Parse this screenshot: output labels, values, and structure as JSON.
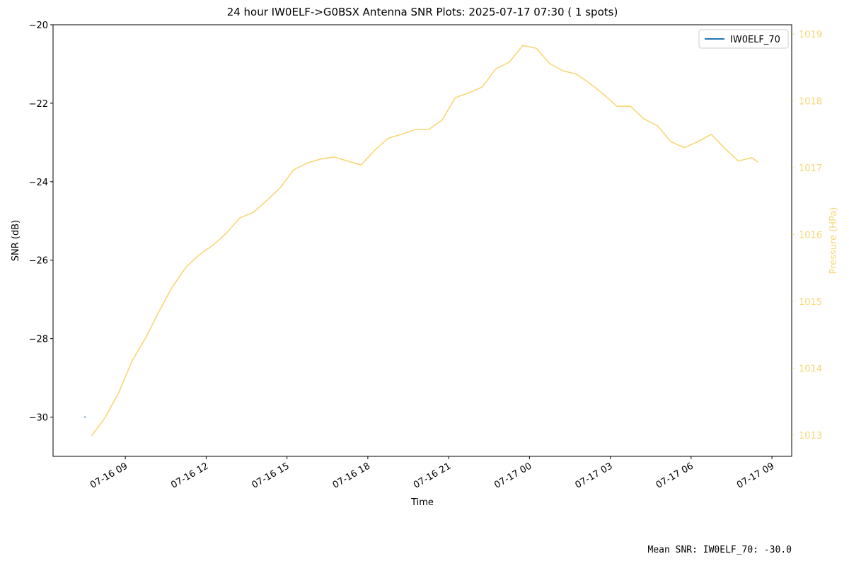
{
  "chart_data": {
    "type": "line",
    "title": "24 hour IW0ELF->G0BSX Antenna SNR Plots: 2025-07-17 07:30  ( 1 spots)",
    "x_label": "Time",
    "y_label": "SNR (dB)",
    "y2_label": "Pressure (HPa)",
    "footer": "Mean SNR: IW0ELF_70: -30.0",
    "legend": "upper right",
    "xlim": [
      "2025-07-16 06:19",
      "2025-07-17 09:44"
    ],
    "xticks": [
      {
        "value": "2025-07-16 09:00",
        "label": "07-16 09"
      },
      {
        "value": "2025-07-16 12:00",
        "label": "07-16 12"
      },
      {
        "value": "2025-07-16 15:00",
        "label": "07-16 15"
      },
      {
        "value": "2025-07-16 18:00",
        "label": "07-16 18"
      },
      {
        "value": "2025-07-16 21:00",
        "label": "07-16 21"
      },
      {
        "value": "2025-07-17 00:00",
        "label": "07-17 00"
      },
      {
        "value": "2025-07-17 03:00",
        "label": "07-17 03"
      },
      {
        "value": "2025-07-17 06:00",
        "label": "07-17 06"
      },
      {
        "value": "2025-07-17 09:00",
        "label": "07-17 09"
      }
    ],
    "ylim": [
      -31,
      -20
    ],
    "yticks": [
      {
        "value": -30,
        "label": "−30"
      },
      {
        "value": -28,
        "label": "−28"
      },
      {
        "value": -26,
        "label": "−26"
      },
      {
        "value": -24,
        "label": "−24"
      },
      {
        "value": -22,
        "label": "−22"
      },
      {
        "value": -20,
        "label": "−20"
      }
    ],
    "y2lim": [
      1012.68,
      1019.14
    ],
    "y2ticks": [
      1013,
      1014,
      1015,
      1016,
      1017,
      1018,
      1019
    ],
    "y2color": "#f7d774",
    "series": [
      {
        "name": "IW0ELF_70",
        "color": "#1f77b4",
        "x": [
          "2025-07-16 07:30"
        ],
        "values": [
          -30
        ]
      },
      {
        "color": "#f7d774",
        "axis": "y2",
        "x": [
          "2025-07-16 07:45",
          "2025-07-16 08:15",
          "2025-07-16 08:45",
          "2025-07-16 09:15",
          "2025-07-16 09:45",
          "2025-07-16 10:15",
          "2025-07-16 10:45",
          "2025-07-16 11:15",
          "2025-07-16 11:45",
          "2025-07-16 12:15",
          "2025-07-16 12:45",
          "2025-07-16 13:15",
          "2025-07-16 13:45",
          "2025-07-16 14:15",
          "2025-07-16 14:45",
          "2025-07-16 15:15",
          "2025-07-16 15:45",
          "2025-07-16 16:15",
          "2025-07-16 16:45",
          "2025-07-16 17:15",
          "2025-07-16 17:45",
          "2025-07-16 18:15",
          "2025-07-16 18:45",
          "2025-07-16 19:15",
          "2025-07-16 19:45",
          "2025-07-16 20:15",
          "2025-07-16 20:45",
          "2025-07-16 21:15",
          "2025-07-16 21:45",
          "2025-07-16 22:15",
          "2025-07-16 22:45",
          "2025-07-16 23:15",
          "2025-07-16 23:45",
          "2025-07-17 00:15",
          "2025-07-17 00:45",
          "2025-07-17 01:15",
          "2025-07-17 01:45",
          "2025-07-17 02:15",
          "2025-07-17 02:45",
          "2025-07-17 03:15",
          "2025-07-17 03:45",
          "2025-07-17 04:15",
          "2025-07-17 04:45",
          "2025-07-17 05:15",
          "2025-07-17 05:45",
          "2025-07-17 06:15",
          "2025-07-17 06:45",
          "2025-07-17 07:15",
          "2025-07-17 07:45",
          "2025-07-17 08:15",
          "2025-07-17 08:30"
        ],
        "values": [
          1012.99,
          1013.26,
          1013.63,
          1014.11,
          1014.45,
          1014.85,
          1015.22,
          1015.51,
          1015.7,
          1015.84,
          1016.02,
          1016.25,
          1016.33,
          1016.51,
          1016.7,
          1016.97,
          1017.07,
          1017.13,
          1017.16,
          1017.1,
          1017.04,
          1017.26,
          1017.44,
          1017.5,
          1017.57,
          1017.57,
          1017.71,
          1018.05,
          1018.12,
          1018.21,
          1018.48,
          1018.58,
          1018.83,
          1018.79,
          1018.56,
          1018.45,
          1018.4,
          1018.26,
          1018.1,
          1017.92,
          1017.92,
          1017.73,
          1017.63,
          1017.39,
          1017.3,
          1017.39,
          1017.5,
          1017.29,
          1017.1,
          1017.15,
          1017.08
        ]
      }
    ]
  }
}
